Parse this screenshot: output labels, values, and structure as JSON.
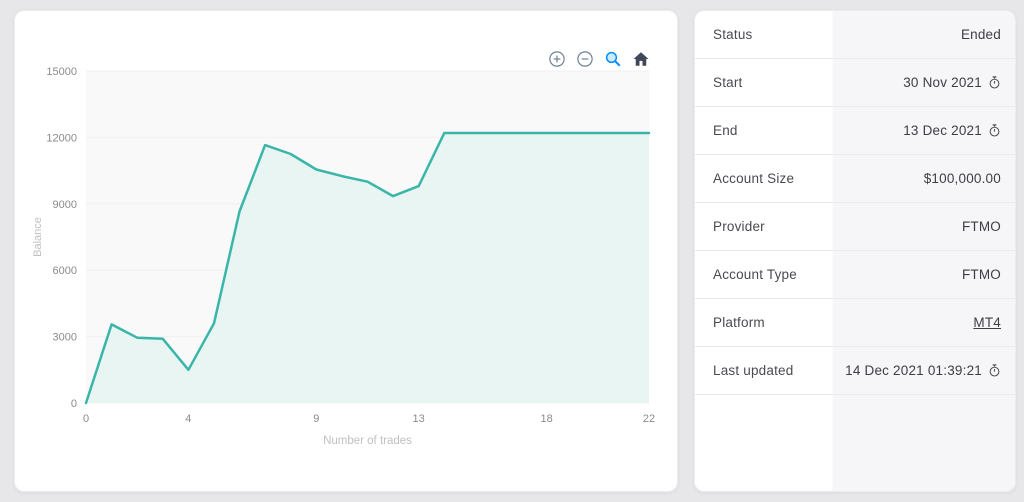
{
  "colors": {
    "page_bg": "#e7e7e9",
    "card_bg": "#ffffff",
    "value_col_bg": "#f6f6f8",
    "line": "#3ab6a8",
    "area_fill": "#e8f5f3",
    "plot_bg": "#f9f9fa",
    "grid": "#f0f0f2",
    "tick_text": "#8b8b90",
    "axis_title_text": "#c0c0c4",
    "toolbar_icon": "#6e8192",
    "toolbar_active_icon": "#008ffb",
    "toolbar_home_icon": "#40475a"
  },
  "chart_toolbar": {
    "icons": [
      {
        "name": "zoom-in-icon"
      },
      {
        "name": "zoom-out-icon"
      },
      {
        "name": "selection-zoom-icon",
        "active": true
      },
      {
        "name": "home-icon"
      }
    ]
  },
  "chart_data": {
    "type": "area",
    "series": [
      {
        "name": "Balance",
        "x": [
          0,
          1,
          2,
          3,
          4,
          5,
          6,
          7,
          8,
          9,
          10,
          11,
          12,
          13,
          14,
          15,
          16,
          17,
          18,
          19,
          20,
          21,
          22
        ],
        "values": [
          0,
          3550,
          2950,
          2900,
          1500,
          3600,
          8650,
          11650,
          11250,
          10550,
          10250,
          10000,
          9350,
          9800,
          12200,
          12200,
          12200,
          12200,
          12200,
          12200,
          12200,
          12200,
          12200
        ]
      }
    ],
    "title": "",
    "xlabel": "Number of trades",
    "ylabel": "Balance",
    "xlim": [
      0,
      22
    ],
    "ylim": [
      0,
      15000
    ],
    "xticks": [
      0,
      4,
      9,
      13,
      18,
      22
    ],
    "yticks": [
      0,
      3000,
      6000,
      9000,
      12000,
      15000
    ],
    "grid": "horizontal",
    "legend": "none"
  },
  "details": {
    "rows": [
      {
        "label": "Status",
        "value": "Ended"
      },
      {
        "label": "Start",
        "value": "30 Nov 2021",
        "clock_icon": true
      },
      {
        "label": "End",
        "value": "13 Dec 2021",
        "clock_icon": true
      },
      {
        "label": "Account Size",
        "value": "$100,000.00"
      },
      {
        "label": "Provider",
        "value": "FTMO"
      },
      {
        "label": "Account Type",
        "value": "FTMO"
      },
      {
        "label": "Platform",
        "value": "MT4",
        "link": true
      },
      {
        "label": "Last updated",
        "value": "14 Dec 2021 01:39:21",
        "clock_icon": true
      }
    ]
  }
}
